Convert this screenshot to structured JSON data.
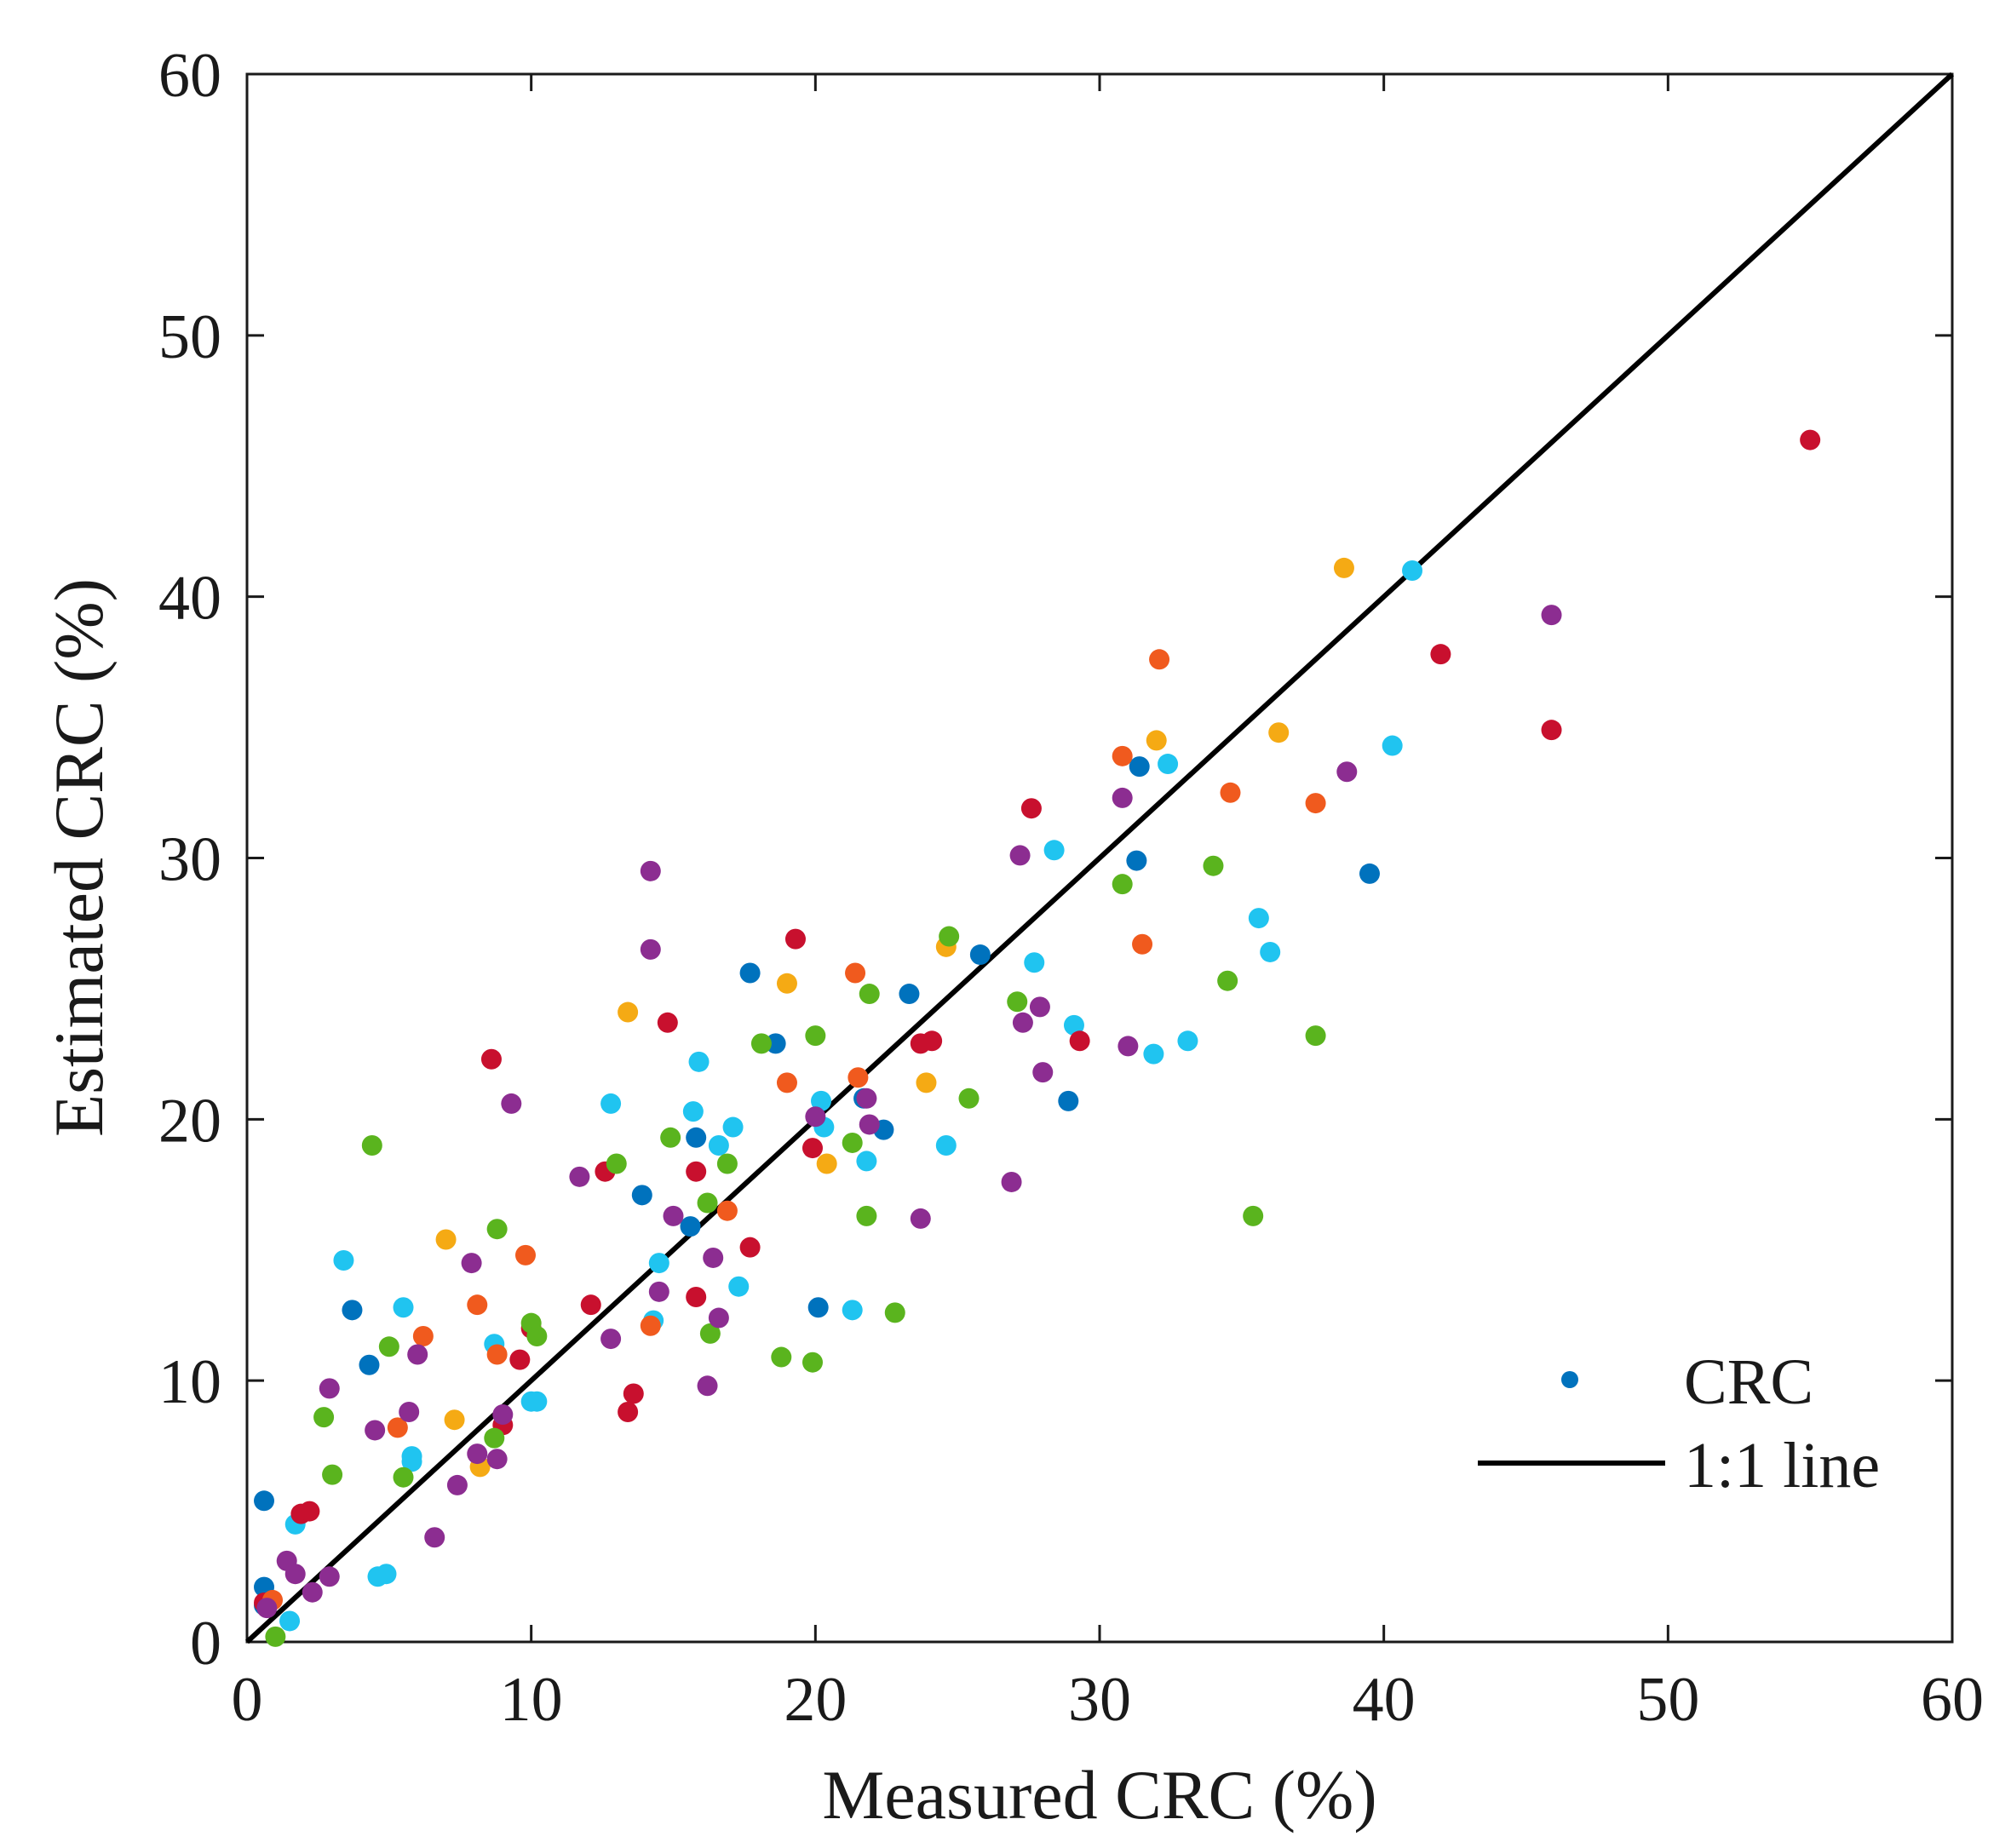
{
  "chart_data": {
    "type": "scatter",
    "title": "",
    "xlabel": "Measured CRC (%)",
    "ylabel": "Estimated CRC (%)",
    "xlim": [
      0,
      60
    ],
    "ylim": [
      0,
      60
    ],
    "xticks": [
      "0",
      "10",
      "20",
      "30",
      "40",
      "50",
      "60"
    ],
    "yticks": [
      "0",
      "10",
      "20",
      "30",
      "40",
      "50",
      "60"
    ],
    "grid": false,
    "legend": {
      "placement": "bottom-right",
      "entries": [
        {
          "label": "CRC",
          "kind": "marker",
          "color": "#0072bd"
        },
        {
          "label": "1:1 line",
          "kind": "line",
          "color": "#000000"
        }
      ]
    },
    "reference_line": {
      "name": "1:1 line",
      "x": [
        0,
        60
      ],
      "y": [
        0,
        60
      ],
      "color": "#000000"
    },
    "series": [
      {
        "name": "blue",
        "color": "#0072bd",
        "points": [
          [
            0.6,
            5.4
          ],
          [
            0.6,
            2.1
          ],
          [
            0.6,
            1.4
          ],
          [
            3.7,
            12.7
          ],
          [
            4.3,
            10.6
          ],
          [
            13.9,
            17.1
          ],
          [
            15.6,
            15.9
          ],
          [
            15.8,
            19.3
          ],
          [
            17.7,
            25.6
          ],
          [
            18.6,
            22.9
          ],
          [
            20.1,
            12.8
          ],
          [
            21.7,
            20.8
          ],
          [
            22.4,
            19.6
          ],
          [
            23.3,
            24.8
          ],
          [
            25.8,
            26.3
          ],
          [
            28.9,
            20.7
          ],
          [
            31.3,
            29.9
          ],
          [
            31.4,
            33.5
          ],
          [
            39.5,
            29.4
          ]
        ]
      },
      {
        "name": "cyan",
        "color": "#20c4f0",
        "points": [
          [
            1.5,
            0.8
          ],
          [
            1.7,
            4.5
          ],
          [
            3.4,
            14.6
          ],
          [
            4.6,
            2.5
          ],
          [
            4.9,
            2.6
          ],
          [
            5.5,
            12.8
          ],
          [
            5.8,
            7.1
          ],
          [
            5.8,
            6.9
          ],
          [
            8.7,
            11.4
          ],
          [
            10.0,
            9.2
          ],
          [
            10.2,
            9.2
          ],
          [
            12.8,
            20.6
          ],
          [
            14.3,
            12.3
          ],
          [
            14.5,
            14.5
          ],
          [
            15.7,
            20.3
          ],
          [
            15.9,
            22.2
          ],
          [
            16.6,
            19.0
          ],
          [
            17.1,
            19.7
          ],
          [
            17.3,
            13.6
          ],
          [
            20.2,
            20.7
          ],
          [
            20.3,
            19.7
          ],
          [
            21.3,
            12.7
          ],
          [
            21.8,
            18.4
          ],
          [
            24.6,
            19.0
          ],
          [
            27.7,
            26.0
          ],
          [
            28.4,
            30.3
          ],
          [
            29.1,
            23.6
          ],
          [
            31.9,
            22.5
          ],
          [
            32.4,
            33.6
          ],
          [
            33.1,
            23.0
          ],
          [
            35.6,
            27.7
          ],
          [
            36.0,
            26.4
          ],
          [
            40.3,
            34.3
          ],
          [
            41.0,
            41.0
          ]
        ]
      },
      {
        "name": "red",
        "color": "#c8102e",
        "points": [
          [
            0.6,
            1.5
          ],
          [
            1.9,
            4.9
          ],
          [
            2.2,
            5.0
          ],
          [
            8.6,
            22.3
          ],
          [
            9.0,
            8.3
          ],
          [
            9.6,
            10.8
          ],
          [
            10.0,
            12.0
          ],
          [
            12.1,
            12.9
          ],
          [
            12.6,
            18.0
          ],
          [
            13.4,
            8.8
          ],
          [
            13.6,
            9.5
          ],
          [
            14.8,
            23.7
          ],
          [
            15.8,
            18.0
          ],
          [
            15.8,
            13.2
          ],
          [
            17.7,
            15.1
          ],
          [
            19.3,
            26.9
          ],
          [
            19.9,
            18.9
          ],
          [
            23.7,
            22.9
          ],
          [
            24.1,
            23.0
          ],
          [
            27.6,
            31.9
          ],
          [
            29.3,
            23.0
          ],
          [
            42.0,
            37.8
          ],
          [
            45.9,
            34.9
          ],
          [
            55.0,
            46.0
          ]
        ]
      },
      {
        "name": "orange-red",
        "color": "#f05a1e",
        "points": [
          [
            0.9,
            1.6
          ],
          [
            5.3,
            8.2
          ],
          [
            6.2,
            11.7
          ],
          [
            8.1,
            12.9
          ],
          [
            8.8,
            11.0
          ],
          [
            9.8,
            14.8
          ],
          [
            14.2,
            12.1
          ],
          [
            16.9,
            16.5
          ],
          [
            19.0,
            21.4
          ],
          [
            21.4,
            25.6
          ],
          [
            21.5,
            21.6
          ],
          [
            30.8,
            33.9
          ],
          [
            31.5,
            26.7
          ],
          [
            32.1,
            37.6
          ],
          [
            34.6,
            32.5
          ],
          [
            37.6,
            32.1
          ]
        ]
      },
      {
        "name": "yellow",
        "color": "#f5aa14",
        "points": [
          [
            7.0,
            15.4
          ],
          [
            7.3,
            8.5
          ],
          [
            8.2,
            6.7
          ],
          [
            13.4,
            24.1
          ],
          [
            19.0,
            25.2
          ],
          [
            20.4,
            18.3
          ],
          [
            23.9,
            21.4
          ],
          [
            24.6,
            26.6
          ],
          [
            32.0,
            34.5
          ],
          [
            36.3,
            34.8
          ],
          [
            38.6,
            41.1
          ]
        ]
      },
      {
        "name": "green",
        "color": "#5ab41e",
        "points": [
          [
            1.0,
            0.2
          ],
          [
            2.7,
            8.6
          ],
          [
            3.0,
            6.4
          ],
          [
            4.4,
            19.0
          ],
          [
            5.0,
            11.3
          ],
          [
            5.5,
            6.3
          ],
          [
            8.7,
            7.8
          ],
          [
            8.8,
            15.8
          ],
          [
            10.0,
            12.2
          ],
          [
            10.2,
            11.7
          ],
          [
            13.0,
            18.3
          ],
          [
            14.9,
            19.3
          ],
          [
            16.2,
            16.8
          ],
          [
            16.3,
            11.8
          ],
          [
            16.9,
            18.3
          ],
          [
            18.1,
            22.9
          ],
          [
            18.8,
            10.9
          ],
          [
            19.9,
            10.7
          ],
          [
            20.0,
            23.2
          ],
          [
            21.3,
            19.1
          ],
          [
            21.8,
            16.3
          ],
          [
            21.9,
            24.8
          ],
          [
            22.8,
            12.6
          ],
          [
            24.7,
            27.0
          ],
          [
            25.4,
            20.8
          ],
          [
            27.1,
            24.5
          ],
          [
            30.8,
            29.0
          ],
          [
            34.0,
            29.7
          ],
          [
            34.5,
            25.3
          ],
          [
            35.4,
            16.3
          ],
          [
            37.6,
            23.2
          ]
        ]
      },
      {
        "name": "purple",
        "color": "#8c2d91",
        "points": [
          [
            0.7,
            1.3
          ],
          [
            1.4,
            3.1
          ],
          [
            1.7,
            2.6
          ],
          [
            2.3,
            1.9
          ],
          [
            2.9,
            9.7
          ],
          [
            2.9,
            2.5
          ],
          [
            4.5,
            8.1
          ],
          [
            5.7,
            8.8
          ],
          [
            6.0,
            11.0
          ],
          [
            6.6,
            4.0
          ],
          [
            7.4,
            6.0
          ],
          [
            7.9,
            14.5
          ],
          [
            8.1,
            7.2
          ],
          [
            8.8,
            7.0
          ],
          [
            9.0,
            8.7
          ],
          [
            9.3,
            20.6
          ],
          [
            11.7,
            17.8
          ],
          [
            12.8,
            11.6
          ],
          [
            14.2,
            29.5
          ],
          [
            14.2,
            26.5
          ],
          [
            14.5,
            13.4
          ],
          [
            15.0,
            16.3
          ],
          [
            16.2,
            9.8
          ],
          [
            16.4,
            14.7
          ],
          [
            16.6,
            12.4
          ],
          [
            20.0,
            20.1
          ],
          [
            21.8,
            20.8
          ],
          [
            21.9,
            19.8
          ],
          [
            23.7,
            16.2
          ],
          [
            26.9,
            17.6
          ],
          [
            27.2,
            30.1
          ],
          [
            27.3,
            23.7
          ],
          [
            27.9,
            24.3
          ],
          [
            28.0,
            21.8
          ],
          [
            30.8,
            32.3
          ],
          [
            31.0,
            22.8
          ],
          [
            38.7,
            33.3
          ],
          [
            45.9,
            39.3
          ]
        ]
      }
    ]
  }
}
